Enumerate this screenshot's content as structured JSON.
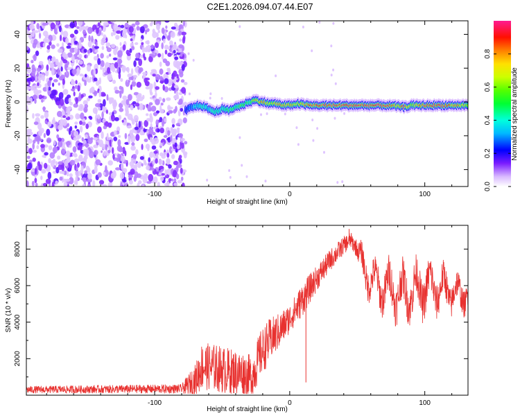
{
  "title": "C2E1.2026.094.07.44.E07",
  "chart_data": [
    {
      "type": "heatmap",
      "title": "C2E1.2026.094.07.44.E07",
      "xlabel": "Height of straight line (km)",
      "ylabel": "Frequency (Hz)",
      "xlim": [
        -195,
        132
      ],
      "ylim": [
        -50,
        48
      ],
      "xticks": [
        -100,
        0,
        100
      ],
      "xtick_labels": [
        "-100",
        "0",
        "100"
      ],
      "yticks": [
        -40,
        -20,
        0,
        20,
        40
      ],
      "ytick_labels": [
        "-40",
        "-20",
        "0",
        "20",
        "40"
      ],
      "colorbar": {
        "label": "Normalized spectral amplitude",
        "range": [
          0,
          1
        ],
        "ticks": [
          0.0,
          0.2,
          0.4,
          0.6,
          0.8
        ],
        "tick_labels": [
          "0.0",
          "0.2",
          "0.4",
          "0.6",
          "0.8"
        ]
      },
      "noise_region": {
        "x_from": -195,
        "x_to": -77,
        "amplitude": 0.15
      },
      "ridge": [
        {
          "x": -77,
          "y": -5,
          "amp": 0.25
        },
        {
          "x": -72,
          "y": -3,
          "amp": 0.35
        },
        {
          "x": -66,
          "y": -2,
          "amp": 0.45
        },
        {
          "x": -60,
          "y": -4,
          "amp": 0.4
        },
        {
          "x": -55,
          "y": -6,
          "amp": 0.5
        },
        {
          "x": -50,
          "y": -4,
          "amp": 0.45
        },
        {
          "x": -45,
          "y": -5,
          "amp": 0.55
        },
        {
          "x": -40,
          "y": -3,
          "amp": 0.5
        },
        {
          "x": -35,
          "y": -2,
          "amp": 0.6
        },
        {
          "x": -30,
          "y": 0,
          "amp": 0.55
        },
        {
          "x": -25,
          "y": 1,
          "amp": 0.75
        },
        {
          "x": -20,
          "y": 0,
          "amp": 0.85
        },
        {
          "x": -15,
          "y": -1,
          "amp": 0.75
        },
        {
          "x": -10,
          "y": -1,
          "amp": 0.8
        },
        {
          "x": -5,
          "y": -2,
          "amp": 0.85
        },
        {
          "x": 0,
          "y": -2,
          "amp": 0.8
        },
        {
          "x": 5,
          "y": -1,
          "amp": 0.7
        },
        {
          "x": 10,
          "y": -1.5,
          "amp": 0.85
        },
        {
          "x": 15,
          "y": -2,
          "amp": 0.9
        },
        {
          "x": 30,
          "y": -2,
          "amp": 0.95
        },
        {
          "x": 50,
          "y": -2,
          "amp": 0.97
        },
        {
          "x": 70,
          "y": -2,
          "amp": 0.95
        },
        {
          "x": 80,
          "y": -2.5,
          "amp": 0.8
        },
        {
          "x": 85,
          "y": -3,
          "amp": 0.95
        },
        {
          "x": 90,
          "y": -2,
          "amp": 0.7
        },
        {
          "x": 100,
          "y": -2,
          "amp": 0.95
        },
        {
          "x": 115,
          "y": -2,
          "amp": 0.95
        },
        {
          "x": 132,
          "y": -2,
          "amp": 0.7
        }
      ]
    },
    {
      "type": "line",
      "xlabel": "Height of straight line (km)",
      "ylabel": "SNR (10 * v/v)",
      "xlim": [
        -195,
        132
      ],
      "ylim": [
        0,
        9300
      ],
      "xticks": [
        -100,
        0,
        100
      ],
      "xtick_labels": [
        "-100",
        "0",
        "100"
      ],
      "yticks": [
        2000,
        4000,
        6000,
        8000
      ],
      "ytick_labels": [
        "2000",
        "4000",
        "6000",
        "8000"
      ],
      "color": "#e8312f",
      "series": [
        {
          "name": "SNR",
          "envelope": [
            {
              "x": -195,
              "mean": 300,
              "amp": 200
            },
            {
              "x": -80,
              "mean": 350,
              "amp": 250
            },
            {
              "x": -70,
              "mean": 800,
              "amp": 900
            },
            {
              "x": -65,
              "mean": 1600,
              "amp": 1300
            },
            {
              "x": -55,
              "mean": 1500,
              "amp": 1300
            },
            {
              "x": -45,
              "mean": 1300,
              "amp": 1300
            },
            {
              "x": -35,
              "mean": 1200,
              "amp": 1200
            },
            {
              "x": -28,
              "mean": 1000,
              "amp": 1200
            },
            {
              "x": -22,
              "mean": 2200,
              "amp": 1300
            },
            {
              "x": -15,
              "mean": 3000,
              "amp": 1200
            },
            {
              "x": -8,
              "mean": 3500,
              "amp": 1000
            },
            {
              "x": 0,
              "mean": 4200,
              "amp": 800
            },
            {
              "x": 10,
              "mean": 5300,
              "amp": 900
            },
            {
              "x": 20,
              "mean": 6400,
              "amp": 700
            },
            {
              "x": 30,
              "mean": 7400,
              "amp": 600
            },
            {
              "x": 40,
              "mean": 8200,
              "amp": 500
            },
            {
              "x": 45,
              "mean": 8500,
              "amp": 450
            },
            {
              "x": 50,
              "mean": 8000,
              "amp": 500
            },
            {
              "x": 55,
              "mean": 6800,
              "amp": 800
            },
            {
              "x": 65,
              "mean": 6000,
              "amp": 900
            },
            {
              "x": 75,
              "mean": 5800,
              "amp": 1100
            },
            {
              "x": 85,
              "mean": 5600,
              "amp": 1100
            },
            {
              "x": 100,
              "mean": 5900,
              "amp": 1100
            },
            {
              "x": 115,
              "mean": 5800,
              "amp": 900
            },
            {
              "x": 125,
              "mean": 5500,
              "amp": 800
            },
            {
              "x": 132,
              "mean": 5600,
              "amp": 700
            }
          ],
          "spikes": [
            {
              "x": 12,
              "value": 700
            },
            {
              "x": 44,
              "value": 9100
            }
          ]
        }
      ]
    }
  ]
}
